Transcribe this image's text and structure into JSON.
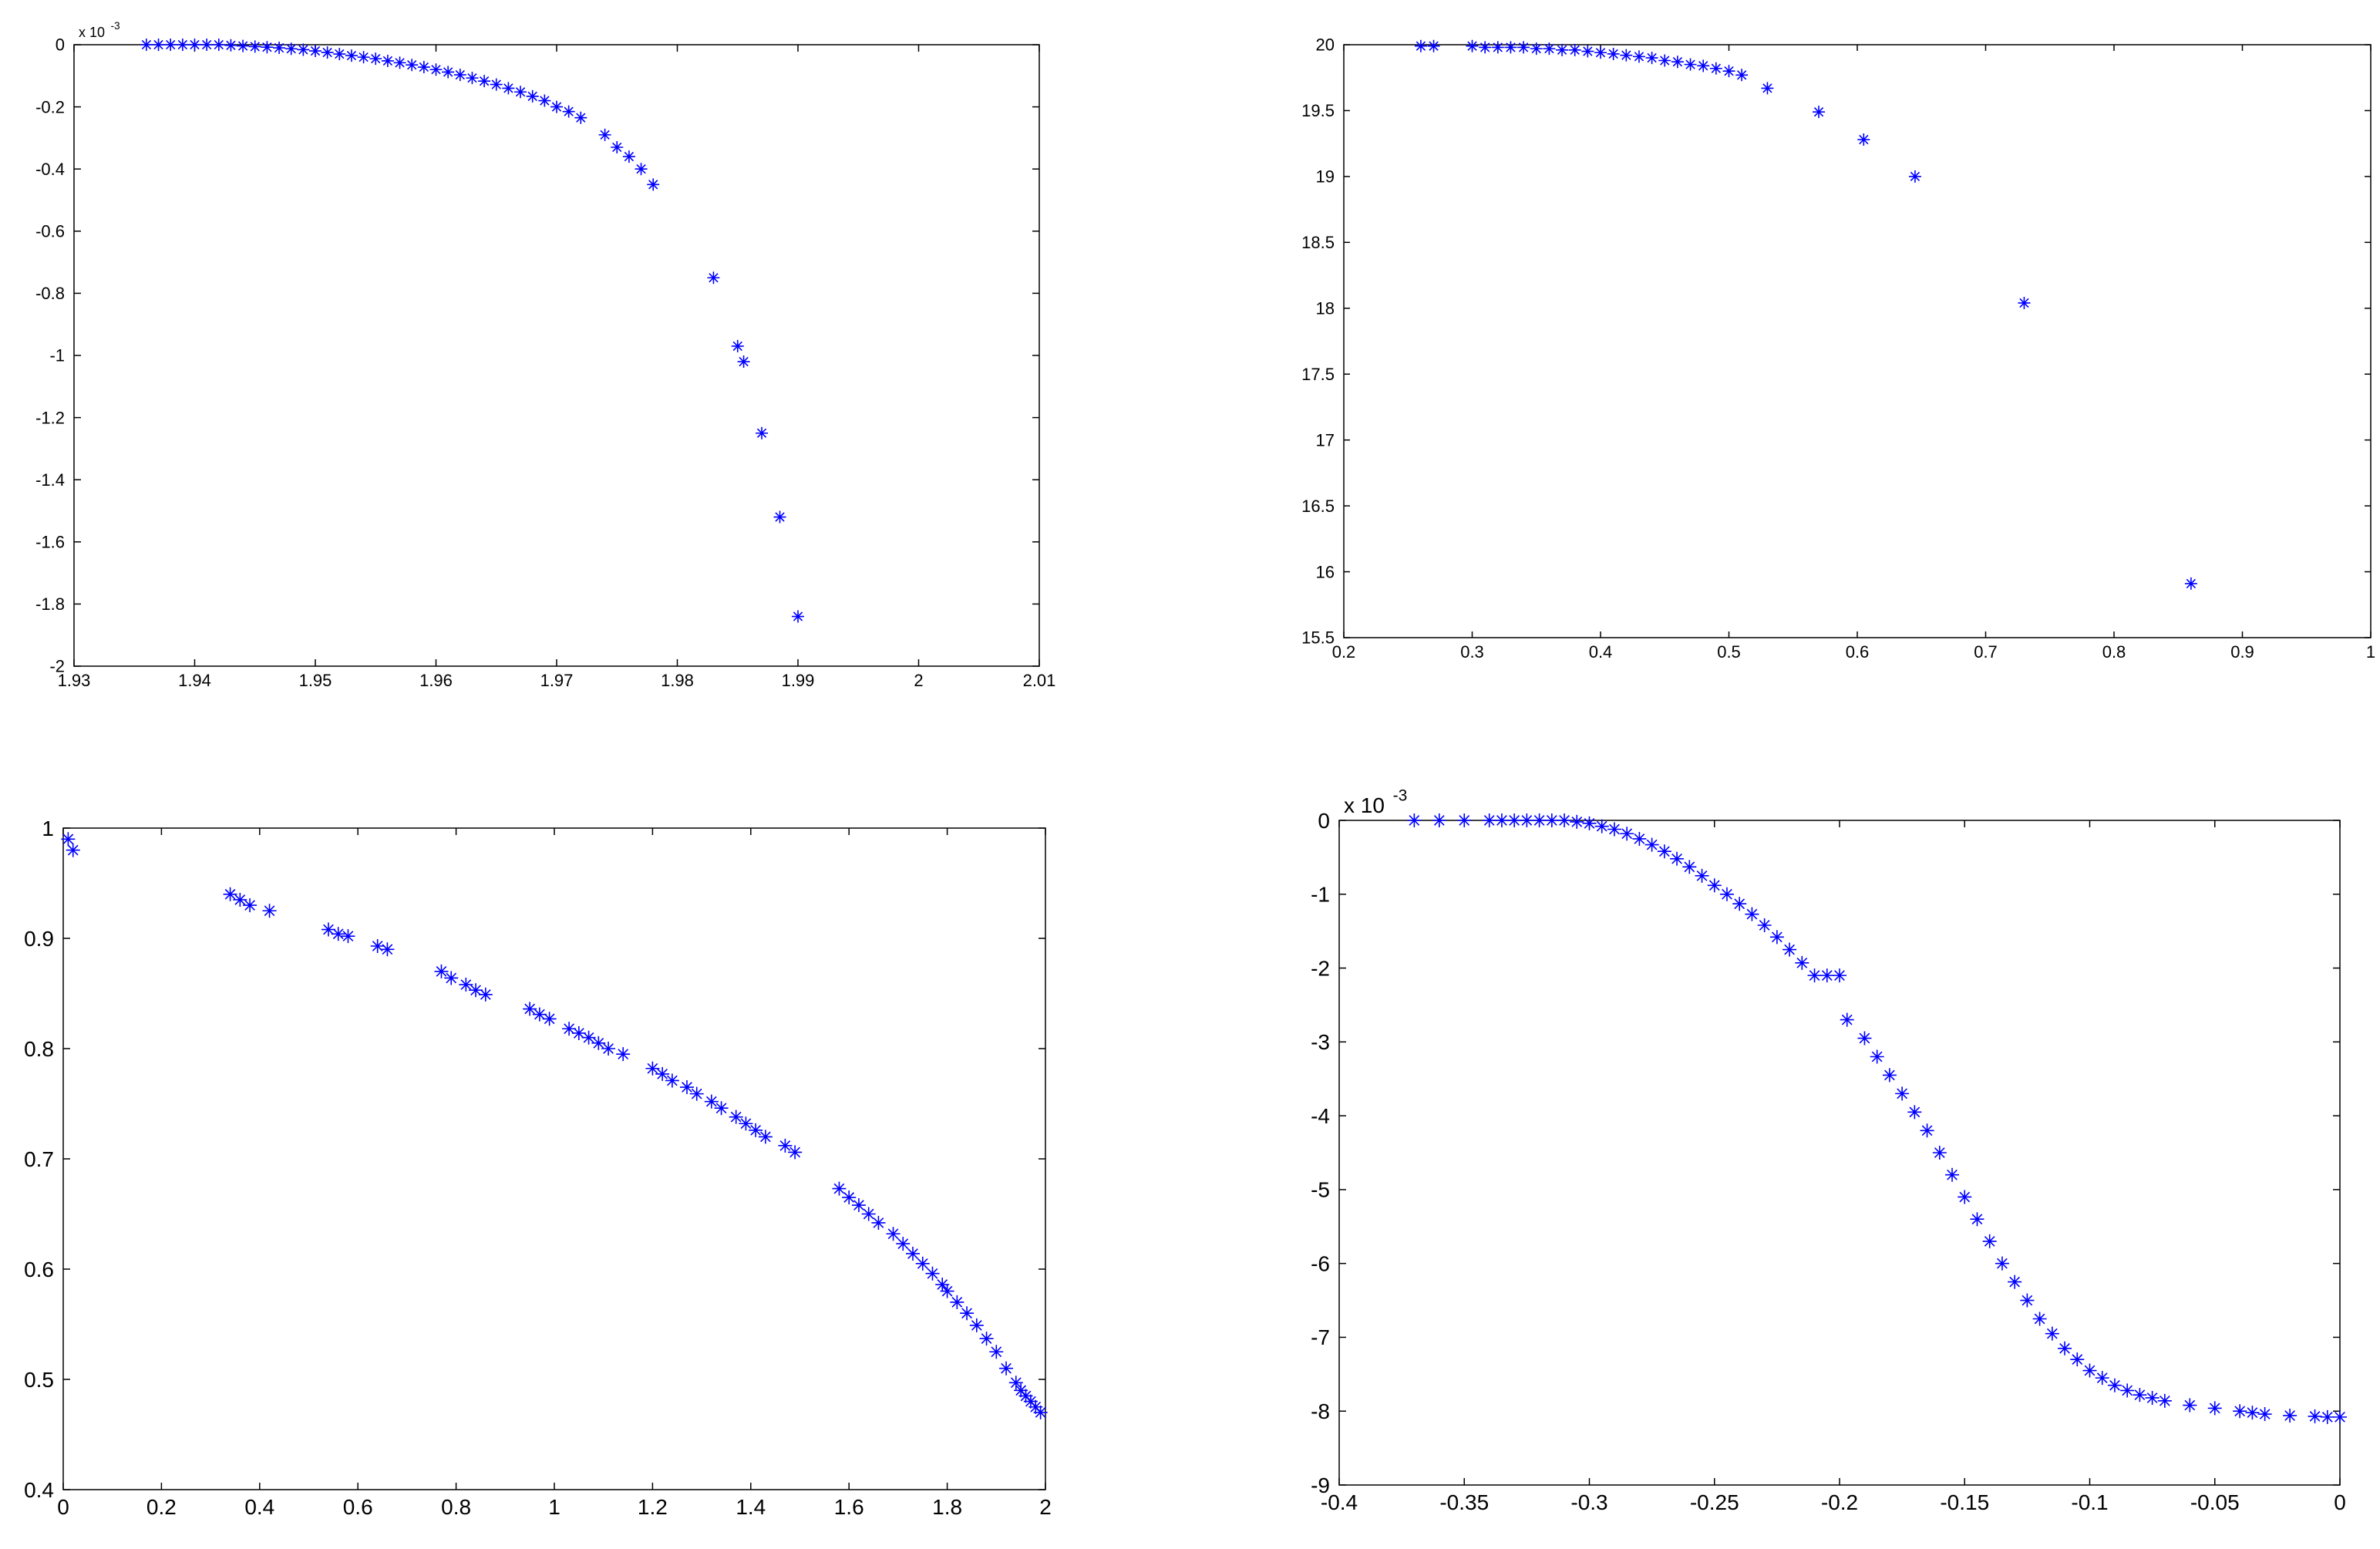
{
  "chart_data": [
    {
      "type": "scatter",
      "title": "",
      "xlabel": "",
      "ylabel": "",
      "exponent_label": "x 10",
      "exponent_power": "-3",
      "xlim": [
        1.93,
        2.01
      ],
      "ylim": [
        -2,
        0
      ],
      "xticks": [
        1.93,
        1.94,
        1.95,
        1.96,
        1.97,
        1.98,
        1.99,
        2,
        2.01
      ],
      "xtick_labels": [
        "1.93",
        "1.94",
        "1.95",
        "1.96",
        "1.97",
        "1.98",
        "1.99",
        "2",
        "2.01"
      ],
      "yticks": [
        0,
        -0.2,
        -0.4,
        -0.6,
        -0.8,
        -1,
        -1.2,
        -1.4,
        -1.6,
        -1.8,
        -2
      ],
      "ytick_labels": [
        "0",
        "-0.2",
        "-0.4",
        "-0.6",
        "-0.8",
        "-1",
        "-1.2",
        "-1.4",
        "-1.6",
        "-1.8",
        "-2"
      ],
      "marker": "*",
      "marker_color": "#0000ff",
      "grid": false,
      "series": [
        {
          "x": [
            1.936,
            1.937,
            1.938,
            1.939,
            1.94,
            1.941,
            1.942,
            1.943,
            1.944,
            1.945,
            1.946,
            1.947,
            1.948,
            1.949,
            1.95,
            1.951,
            1.952,
            1.953,
            1.954,
            1.955,
            1.956,
            1.957,
            1.958,
            1.959,
            1.96,
            1.961,
            1.962,
            1.963,
            1.964,
            1.965,
            1.966,
            1.967,
            1.968,
            1.969,
            1.97,
            1.971,
            1.972,
            1.974,
            1.975,
            1.976,
            1.977,
            1.978,
            1.983,
            1.985,
            1.9855,
            1.987,
            1.9885,
            1.99
          ],
          "y": [
            0,
            0,
            0,
            0,
            0,
            0,
            0,
            -0.002,
            -0.004,
            -0.006,
            -0.008,
            -0.01,
            -0.013,
            -0.016,
            -0.02,
            -0.025,
            -0.03,
            -0.035,
            -0.04,
            -0.045,
            -0.052,
            -0.058,
            -0.065,
            -0.072,
            -0.08,
            -0.088,
            -0.097,
            -0.107,
            -0.117,
            -0.128,
            -0.14,
            -0.152,
            -0.166,
            -0.18,
            -0.2,
            -0.215,
            -0.235,
            -0.29,
            -0.33,
            -0.36,
            -0.4,
            -0.45,
            -0.75,
            -0.97,
            -1.02,
            -1.25,
            -1.52,
            -1.84
          ]
        }
      ]
    },
    {
      "type": "scatter",
      "title": "",
      "xlabel": "",
      "ylabel": "",
      "xlim": [
        0.2,
        1
      ],
      "ylim": [
        15.5,
        20
      ],
      "xticks": [
        0.2,
        0.3,
        0.4,
        0.5,
        0.6,
        0.7,
        0.8,
        0.9,
        1
      ],
      "xtick_labels": [
        "0.2",
        "0.3",
        "0.4",
        "0.5",
        "0.6",
        "0.7",
        "0.8",
        "0.9",
        "1"
      ],
      "yticks": [
        20,
        19.5,
        19,
        18.5,
        18,
        17.5,
        17,
        16.5,
        16,
        15.5
      ],
      "ytick_labels": [
        "20",
        "19.5",
        "19",
        "18.5",
        "18",
        "17.5",
        "17",
        "16.5",
        "16",
        "15.5"
      ],
      "marker": "*",
      "marker_color": "#0000ff",
      "grid": false,
      "series": [
        {
          "x": [
            0.26,
            0.27,
            0.3,
            0.31,
            0.32,
            0.33,
            0.34,
            0.35,
            0.36,
            0.37,
            0.38,
            0.39,
            0.4,
            0.41,
            0.42,
            0.43,
            0.44,
            0.45,
            0.46,
            0.47,
            0.48,
            0.49,
            0.5,
            0.51,
            0.53,
            0.57,
            0.605,
            0.645,
            0.73,
            0.86
          ],
          "y": [
            19.99,
            19.99,
            19.99,
            19.98,
            19.98,
            19.98,
            19.98,
            19.97,
            19.97,
            19.96,
            19.96,
            19.95,
            19.94,
            19.93,
            19.92,
            19.91,
            19.9,
            19.88,
            19.87,
            19.85,
            19.84,
            19.82,
            19.8,
            19.77,
            19.67,
            19.49,
            19.28,
            19.0,
            18.04,
            15.91
          ]
        }
      ]
    },
    {
      "type": "scatter",
      "title": "",
      "xlabel": "",
      "ylabel": "",
      "xlim": [
        0,
        2
      ],
      "ylim": [
        0.4,
        1
      ],
      "xticks": [
        0,
        0.2,
        0.4,
        0.6,
        0.8,
        1,
        1.2,
        1.4,
        1.6,
        1.8,
        2
      ],
      "xtick_labels": [
        "0",
        "0.2",
        "0.4",
        "0.6",
        "0.8",
        "1",
        "1.2",
        "1.4",
        "1.6",
        "1.8",
        "2"
      ],
      "yticks": [
        1,
        0.9,
        0.8,
        0.7,
        0.6,
        0.5,
        0.4
      ],
      "ytick_labels": [
        "1",
        "0.9",
        "0.8",
        "0.7",
        "0.6",
        "0.5",
        "0.4"
      ],
      "marker": "*",
      "marker_color": "#0000ff",
      "grid": false,
      "series": [
        {
          "x": [
            0.01,
            0.02,
            0.34,
            0.36,
            0.38,
            0.42,
            0.54,
            0.56,
            0.58,
            0.64,
            0.66,
            0.77,
            0.79,
            0.82,
            0.84,
            0.86,
            0.95,
            0.97,
            0.99,
            1.03,
            1.05,
            1.07,
            1.09,
            1.11,
            1.14,
            1.2,
            1.22,
            1.24,
            1.27,
            1.29,
            1.32,
            1.34,
            1.37,
            1.39,
            1.41,
            1.43,
            1.47,
            1.49,
            1.58,
            1.6,
            1.62,
            1.64,
            1.66,
            1.69,
            1.71,
            1.73,
            1.75,
            1.77,
            1.79,
            1.8,
            1.82,
            1.84,
            1.86,
            1.88,
            1.9,
            1.92,
            1.94,
            1.95,
            1.96,
            1.97,
            1.98,
            1.99
          ],
          "y": [
            0.99,
            0.98,
            0.94,
            0.935,
            0.93,
            0.925,
            0.908,
            0.904,
            0.902,
            0.893,
            0.89,
            0.87,
            0.864,
            0.858,
            0.853,
            0.849,
            0.836,
            0.831,
            0.827,
            0.818,
            0.814,
            0.81,
            0.805,
            0.8,
            0.795,
            0.782,
            0.777,
            0.771,
            0.765,
            0.759,
            0.752,
            0.746,
            0.738,
            0.732,
            0.726,
            0.72,
            0.712,
            0.706,
            0.673,
            0.665,
            0.658,
            0.65,
            0.642,
            0.632,
            0.623,
            0.614,
            0.605,
            0.596,
            0.586,
            0.58,
            0.57,
            0.56,
            0.549,
            0.537,
            0.525,
            0.51,
            0.497,
            0.49,
            0.485,
            0.48,
            0.475,
            0.47
          ]
        }
      ]
    },
    {
      "type": "scatter",
      "title": "",
      "xlabel": "",
      "ylabel": "",
      "exponent_label": "x 10",
      "exponent_power": "-3",
      "xlim": [
        -0.4,
        0
      ],
      "ylim": [
        -9,
        0
      ],
      "xticks": [
        -0.4,
        -0.35,
        -0.3,
        -0.25,
        -0.2,
        -0.15,
        -0.1,
        -0.05,
        0
      ],
      "xtick_labels": [
        "-0.4",
        "-0.35",
        "-0.3",
        "-0.25",
        "-0.2",
        "-0.15",
        "-0.1",
        "-0.05",
        "0"
      ],
      "yticks": [
        0,
        -1,
        -2,
        -3,
        -4,
        -5,
        -6,
        -7,
        -8,
        -9
      ],
      "ytick_labels": [
        "0",
        "-1",
        "-2",
        "-3",
        "-4",
        "-5",
        "-6",
        "-7",
        "-8",
        "-9"
      ],
      "marker": "*",
      "marker_color": "#0000ff",
      "grid": false,
      "series": [
        {
          "x": [
            -0.37,
            -0.36,
            -0.35,
            -0.34,
            -0.335,
            -0.33,
            -0.325,
            -0.32,
            -0.315,
            -0.31,
            -0.305,
            -0.3,
            -0.295,
            -0.29,
            -0.285,
            -0.28,
            -0.275,
            -0.27,
            -0.265,
            -0.26,
            -0.255,
            -0.25,
            -0.245,
            -0.24,
            -0.235,
            -0.23,
            -0.225,
            -0.22,
            -0.215,
            -0.21,
            -0.205,
            -0.2,
            -0.197,
            -0.19,
            -0.185,
            -0.18,
            -0.175,
            -0.17,
            -0.165,
            -0.16,
            -0.155,
            -0.15,
            -0.145,
            -0.14,
            -0.135,
            -0.13,
            -0.125,
            -0.12,
            -0.115,
            -0.11,
            -0.105,
            -0.1,
            -0.095,
            -0.09,
            -0.085,
            -0.08,
            -0.075,
            -0.07,
            -0.06,
            -0.05,
            -0.04,
            -0.035,
            -0.03,
            -0.02,
            -0.01,
            -0.005,
            0.0
          ],
          "y": [
            0,
            0,
            0,
            0,
            0,
            0,
            0,
            0,
            0,
            0,
            -0.02,
            -0.04,
            -0.08,
            -0.12,
            -0.18,
            -0.25,
            -0.33,
            -0.42,
            -0.52,
            -0.63,
            -0.75,
            -0.88,
            -1.0,
            -1.13,
            -1.27,
            -1.42,
            -1.58,
            -1.75,
            -1.93,
            -2.1,
            -2.1,
            -2.1,
            -2.7,
            -2.95,
            -3.2,
            -3.45,
            -3.7,
            -3.95,
            -4.2,
            -4.5,
            -4.8,
            -5.1,
            -5.4,
            -5.7,
            -6.0,
            -6.25,
            -6.5,
            -6.75,
            -6.95,
            -7.15,
            -7.3,
            -7.45,
            -7.55,
            -7.65,
            -7.72,
            -7.78,
            -7.82,
            -7.86,
            -7.92,
            -7.96,
            -8.0,
            -8.02,
            -8.04,
            -8.06,
            -8.07,
            -8.08,
            -8.08
          ]
        }
      ]
    }
  ]
}
